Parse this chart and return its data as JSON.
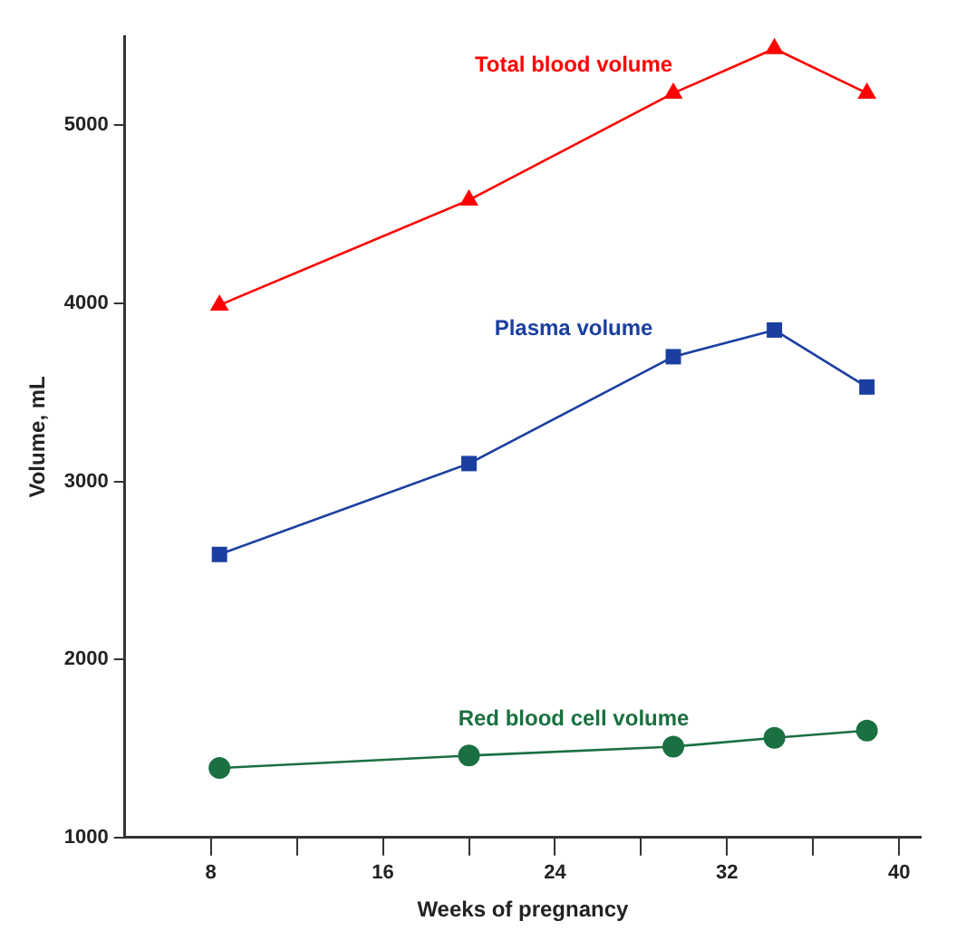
{
  "chart_data": {
    "type": "line",
    "xlabel": "Weeks of pregnancy",
    "ylabel": "Volume, mL",
    "xlim": [
      4,
      41
    ],
    "xticks": [
      8,
      {
        "value": 12,
        "label": null
      },
      16,
      {
        "value": 20,
        "label": null
      },
      24,
      {
        "value": 28,
        "label": null
      },
      32,
      {
        "value": 36,
        "label": null
      },
      40
    ],
    "ylim": [
      1000,
      5500
    ],
    "yticks": [
      1000,
      2000,
      3000,
      4000,
      5000
    ],
    "grid": false,
    "legend": false,
    "series": [
      {
        "name": "Total blood volume",
        "color": "#ff0000",
        "marker": "triangle",
        "x": [
          8.4,
          20,
          29.5,
          34.2,
          38.5
        ],
        "values": [
          3990,
          4580,
          5180,
          5430,
          5180
        ]
      },
      {
        "name": "Plasma volume",
        "color": "#1a3fa0",
        "marker": "square",
        "x": [
          8.4,
          20,
          29.5,
          34.2,
          38.5
        ],
        "values": [
          2590,
          3100,
          3700,
          3850,
          3530
        ]
      },
      {
        "name": "Red blood cell volume",
        "color": "#1a7040",
        "marker": "circle",
        "x": [
          8.4,
          20,
          29.5,
          34.2,
          38.5
        ],
        "values": [
          1390,
          1460,
          1510,
          1560,
          1600
        ]
      }
    ]
  }
}
